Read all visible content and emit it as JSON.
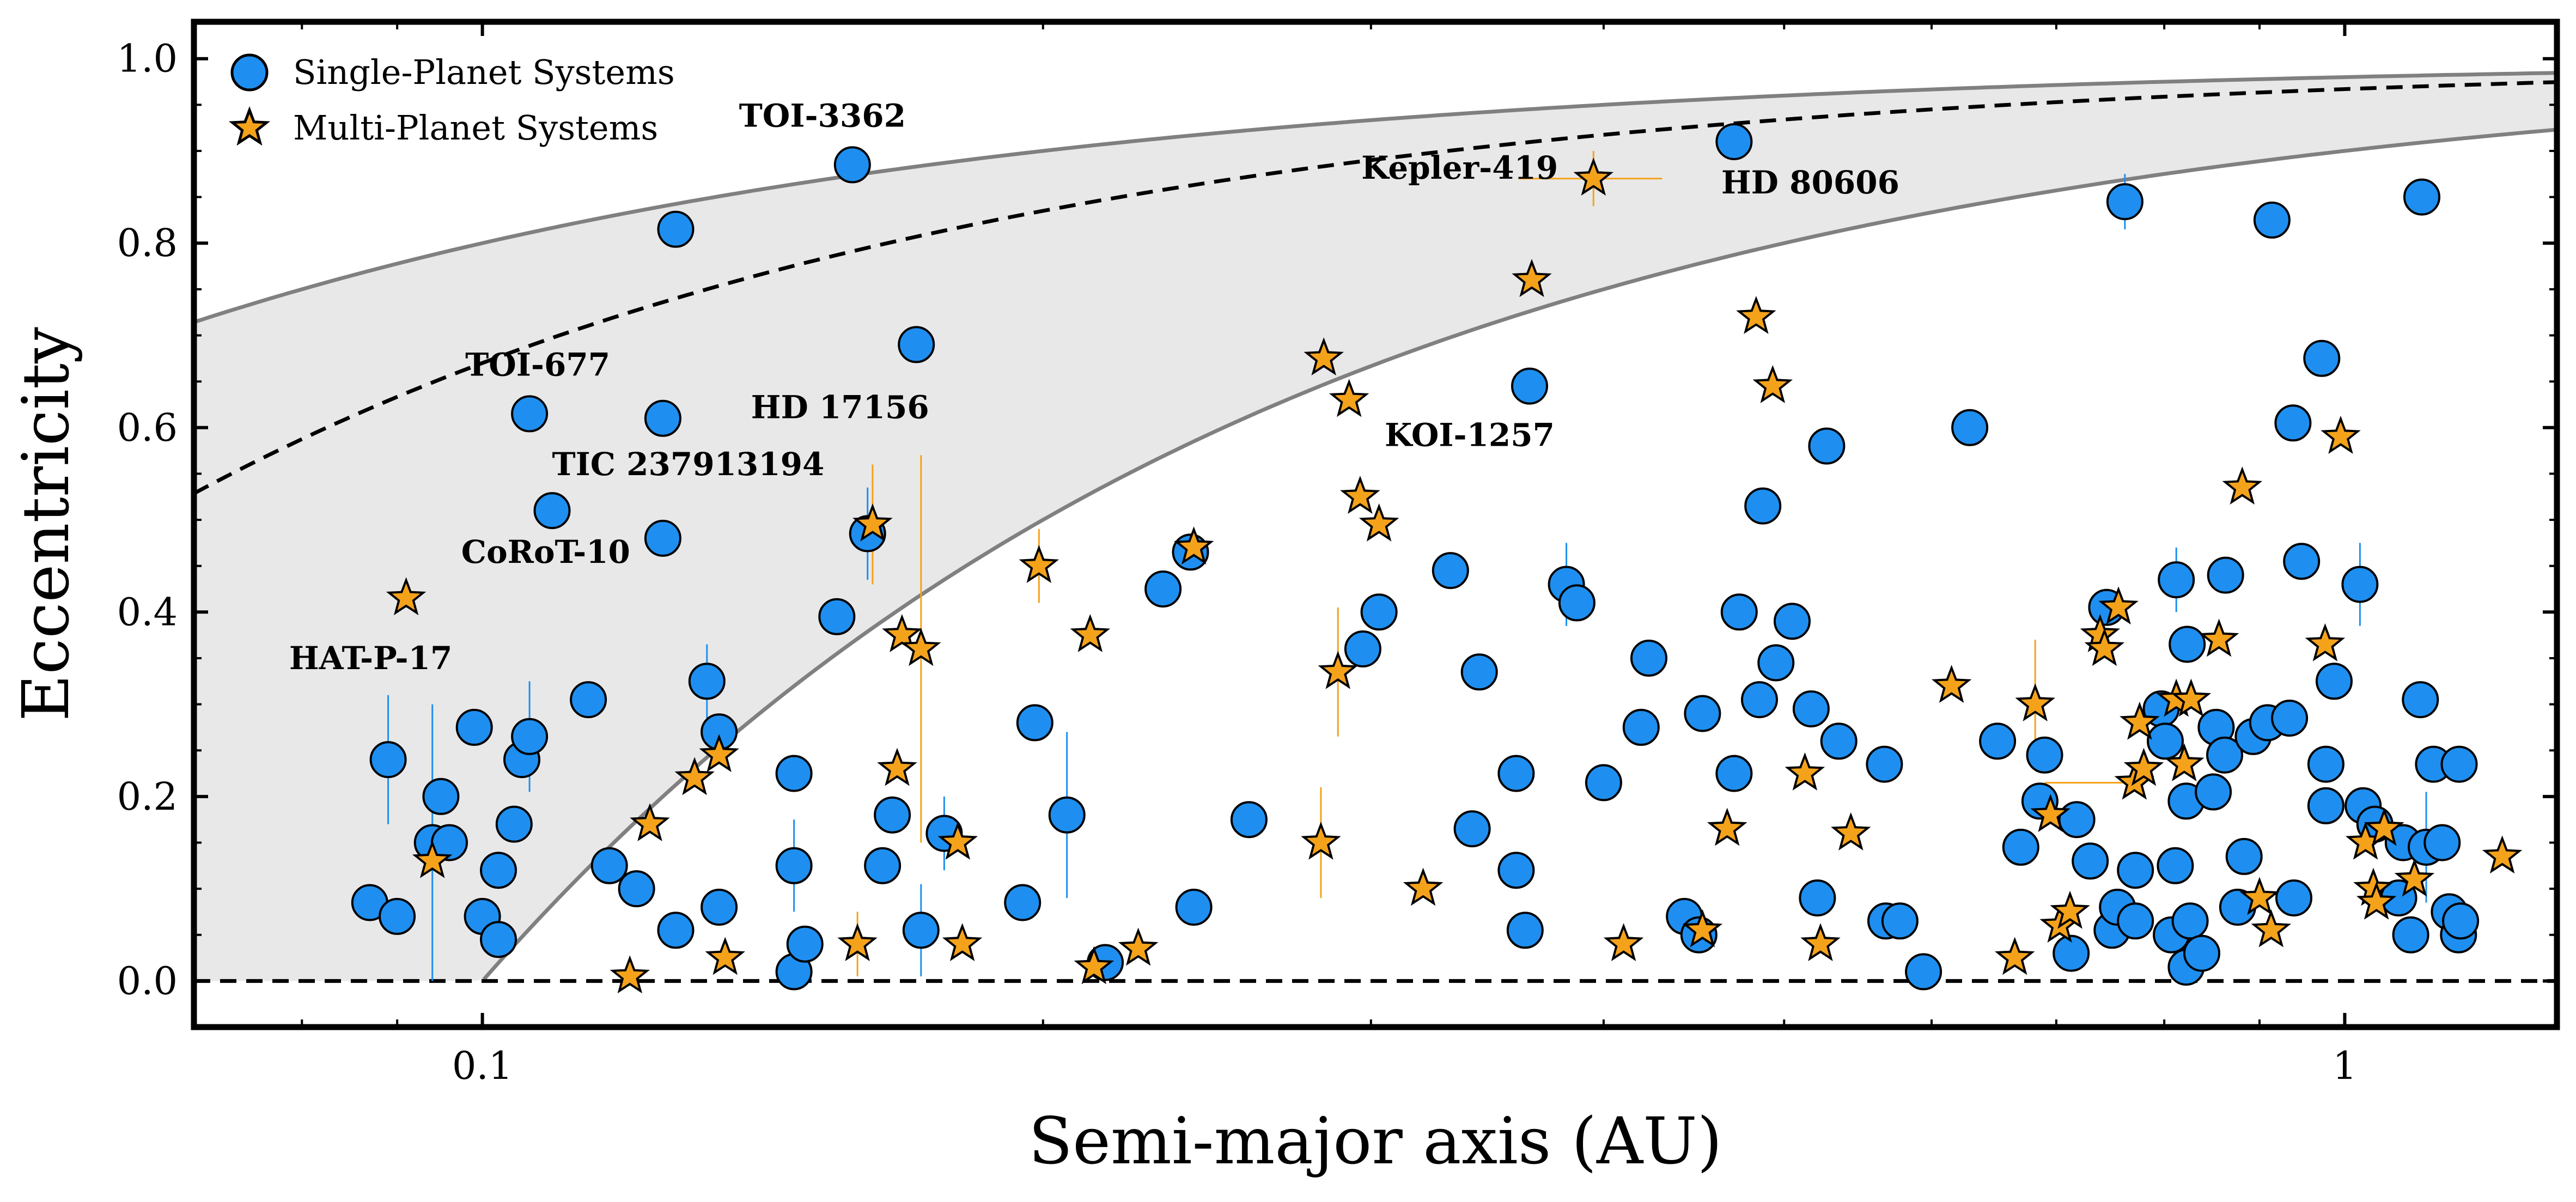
{
  "chart_data": {
    "type": "scatter",
    "xlabel": "Semi-major axis (AU)",
    "ylabel": "Eccentricity",
    "xscale": "log",
    "xlim": [
      0.07,
      1.3
    ],
    "ylim": [
      -0.05,
      1.04
    ],
    "x_ticks": [
      {
        "value": 0.1,
        "label": "0.1"
      },
      {
        "value": 1,
        "label": "1"
      }
    ],
    "y_ticks": [
      {
        "value": 0.0,
        "label": "0.0"
      },
      {
        "value": 0.2,
        "label": "0.2"
      },
      {
        "value": 0.4,
        "label": "0.4"
      },
      {
        "value": 0.6,
        "label": "0.6"
      },
      {
        "value": 0.8,
        "label": "0.8"
      },
      {
        "value": 1.0,
        "label": "1.0"
      }
    ],
    "legend": {
      "position": "top-left",
      "entries": [
        "Single-Planet Systems",
        "Multi-Planet Systems"
      ]
    },
    "colors": {
      "single": "#1e8ff0",
      "multi": "#f5a21b",
      "band": "#e8e8e8",
      "band_edge": "#808080"
    },
    "series": [
      {
        "name": "Single-Planet Systems",
        "marker": "circle",
        "points": [
          {
            "x": 0.089,
            "y": 0.24
          },
          {
            "x": 0.087,
            "y": 0.085
          },
          {
            "x": 0.09,
            "y": 0.07
          },
          {
            "x": 0.094,
            "y": 0.15
          },
          {
            "x": 0.095,
            "y": 0.2
          },
          {
            "x": 0.096,
            "y": 0.15
          },
          {
            "x": 0.099,
            "y": 0.275
          },
          {
            "x": 0.1,
            "y": 0.07
          },
          {
            "x": 0.102,
            "y": 0.045
          },
          {
            "x": 0.102,
            "y": 0.12
          },
          {
            "x": 0.104,
            "y": 0.17
          },
          {
            "x": 0.105,
            "y": 0.24
          },
          {
            "x": 0.106,
            "y": 0.265
          },
          {
            "x": 0.106,
            "y": 0.615
          },
          {
            "x": 0.109,
            "y": 0.51
          },
          {
            "x": 0.114,
            "y": 0.305
          },
          {
            "x": 0.117,
            "y": 0.125
          },
          {
            "x": 0.121,
            "y": 0.1
          },
          {
            "x": 0.125,
            "y": 0.48
          },
          {
            "x": 0.125,
            "y": 0.61
          },
          {
            "x": 0.127,
            "y": 0.815
          },
          {
            "x": 0.127,
            "y": 0.055
          },
          {
            "x": 0.132,
            "y": 0.325
          },
          {
            "x": 0.134,
            "y": 0.27
          },
          {
            "x": 0.134,
            "y": 0.08
          },
          {
            "x": 0.147,
            "y": 0.225
          },
          {
            "x": 0.147,
            "y": 0.125
          },
          {
            "x": 0.147,
            "y": 0.01
          },
          {
            "x": 0.149,
            "y": 0.04
          },
          {
            "x": 0.155,
            "y": 0.395
          },
          {
            "x": 0.158,
            "y": 0.885
          },
          {
            "x": 0.161,
            "y": 0.485
          },
          {
            "x": 0.164,
            "y": 0.125
          },
          {
            "x": 0.166,
            "y": 0.18
          },
          {
            "x": 0.171,
            "y": 0.69
          },
          {
            "x": 0.172,
            "y": 0.055
          },
          {
            "x": 0.177,
            "y": 0.16
          },
          {
            "x": 0.195,
            "y": 0.085
          },
          {
            "x": 0.198,
            "y": 0.28
          },
          {
            "x": 0.206,
            "y": 0.18
          },
          {
            "x": 0.216,
            "y": 0.02
          },
          {
            "x": 0.232,
            "y": 0.425
          },
          {
            "x": 0.24,
            "y": 0.465
          },
          {
            "x": 0.241,
            "y": 0.08
          },
          {
            "x": 0.258,
            "y": 0.175
          },
          {
            "x": 0.297,
            "y": 0.36
          },
          {
            "x": 0.303,
            "y": 0.4
          },
          {
            "x": 0.331,
            "y": 0.445
          },
          {
            "x": 0.343,
            "y": 0.335
          },
          {
            "x": 0.34,
            "y": 0.165
          },
          {
            "x": 0.359,
            "y": 0.225
          },
          {
            "x": 0.359,
            "y": 0.12
          },
          {
            "x": 0.363,
            "y": 0.055
          },
          {
            "x": 0.365,
            "y": 0.645
          },
          {
            "x": 0.382,
            "y": 0.43
          },
          {
            "x": 0.387,
            "y": 0.41
          },
          {
            "x": 0.4,
            "y": 0.215
          },
          {
            "x": 0.419,
            "y": 0.275
          },
          {
            "x": 0.423,
            "y": 0.35
          },
          {
            "x": 0.442,
            "y": 0.07
          },
          {
            "x": 0.45,
            "y": 0.05
          },
          {
            "x": 0.452,
            "y": 0.29
          },
          {
            "x": 0.47,
            "y": 0.91
          },
          {
            "x": 0.47,
            "y": 0.225
          },
          {
            "x": 0.473,
            "y": 0.4
          },
          {
            "x": 0.485,
            "y": 0.305
          },
          {
            "x": 0.487,
            "y": 0.515
          },
          {
            "x": 0.495,
            "y": 0.345
          },
          {
            "x": 0.505,
            "y": 0.39
          },
          {
            "x": 0.517,
            "y": 0.295
          },
          {
            "x": 0.521,
            "y": 0.09
          },
          {
            "x": 0.527,
            "y": 0.58
          },
          {
            "x": 0.535,
            "y": 0.26
          },
          {
            "x": 0.566,
            "y": 0.235
          },
          {
            "x": 0.567,
            "y": 0.065
          },
          {
            "x": 0.577,
            "y": 0.065
          },
          {
            "x": 0.594,
            "y": 0.01
          },
          {
            "x": 0.629,
            "y": 0.6
          },
          {
            "x": 0.651,
            "y": 0.26
          },
          {
            "x": 0.67,
            "y": 0.145
          },
          {
            "x": 0.686,
            "y": 0.195
          },
          {
            "x": 0.69,
            "y": 0.245
          },
          {
            "x": 0.713,
            "y": 0.03
          },
          {
            "x": 0.718,
            "y": 0.175
          },
          {
            "x": 0.73,
            "y": 0.13
          },
          {
            "x": 0.745,
            "y": 0.405
          },
          {
            "x": 0.75,
            "y": 0.055
          },
          {
            "x": 0.755,
            "y": 0.08
          },
          {
            "x": 0.762,
            "y": 0.845
          },
          {
            "x": 0.772,
            "y": 0.12
          },
          {
            "x": 0.772,
            "y": 0.065
          },
          {
            "x": 0.797,
            "y": 0.295
          },
          {
            "x": 0.801,
            "y": 0.26
          },
          {
            "x": 0.807,
            "y": 0.05
          },
          {
            "x": 0.811,
            "y": 0.125
          },
          {
            "x": 0.812,
            "y": 0.435
          },
          {
            "x": 0.822,
            "y": 0.195
          },
          {
            "x": 0.823,
            "y": 0.365
          },
          {
            "x": 0.822,
            "y": 0.015
          },
          {
            "x": 0.826,
            "y": 0.065
          },
          {
            "x": 0.838,
            "y": 0.03
          },
          {
            "x": 0.85,
            "y": 0.205
          },
          {
            "x": 0.853,
            "y": 0.275
          },
          {
            "x": 0.862,
            "y": 0.245
          },
          {
            "x": 0.863,
            "y": 0.44
          },
          {
            "x": 0.876,
            "y": 0.08
          },
          {
            "x": 0.883,
            "y": 0.135
          },
          {
            "x": 0.893,
            "y": 0.265
          },
          {
            "x": 0.909,
            "y": 0.28
          },
          {
            "x": 0.914,
            "y": 0.825
          },
          {
            "x": 0.934,
            "y": 0.285
          },
          {
            "x": 0.938,
            "y": 0.605
          },
          {
            "x": 0.939,
            "y": 0.09
          },
          {
            "x": 0.948,
            "y": 0.455
          },
          {
            "x": 0.972,
            "y": 0.675
          },
          {
            "x": 0.977,
            "y": 0.235
          },
          {
            "x": 0.977,
            "y": 0.19
          },
          {
            "x": 0.987,
            "y": 0.325
          },
          {
            "x": 1.019,
            "y": 0.43
          },
          {
            "x": 1.023,
            "y": 0.19
          },
          {
            "x": 1.038,
            "y": 0.17
          },
          {
            "x": 1.069,
            "y": 0.09
          },
          {
            "x": 1.075,
            "y": 0.15
          },
          {
            "x": 1.085,
            "y": 0.05
          },
          {
            "x": 1.098,
            "y": 0.305
          },
          {
            "x": 1.1,
            "y": 0.85
          },
          {
            "x": 1.106,
            "y": 0.145
          },
          {
            "x": 1.116,
            "y": 0.235
          },
          {
            "x": 1.128,
            "y": 0.15
          },
          {
            "x": 1.138,
            "y": 0.075
          },
          {
            "x": 1.151,
            "y": 0.05
          },
          {
            "x": 1.152,
            "y": 0.235
          },
          {
            "x": 1.154,
            "y": 0.065
          }
        ]
      },
      {
        "name": "Multi-Planet Systems",
        "marker": "star",
        "points": [
          {
            "x": 0.091,
            "y": 0.415
          },
          {
            "x": 0.094,
            "y": 0.13
          },
          {
            "x": 0.12,
            "y": 0.005
          },
          {
            "x": 0.123,
            "y": 0.17
          },
          {
            "x": 0.13,
            "y": 0.22
          },
          {
            "x": 0.134,
            "y": 0.245
          },
          {
            "x": 0.135,
            "y": 0.025
          },
          {
            "x": 0.159,
            "y": 0.04
          },
          {
            "x": 0.162,
            "y": 0.495
          },
          {
            "x": 0.167,
            "y": 0.23
          },
          {
            "x": 0.168,
            "y": 0.375
          },
          {
            "x": 0.172,
            "y": 0.36
          },
          {
            "x": 0.18,
            "y": 0.15
          },
          {
            "x": 0.181,
            "y": 0.04
          },
          {
            "x": 0.199,
            "y": 0.45
          },
          {
            "x": 0.212,
            "y": 0.375
          },
          {
            "x": 0.213,
            "y": 0.015
          },
          {
            "x": 0.225,
            "y": 0.035
          },
          {
            "x": 0.241,
            "y": 0.47
          },
          {
            "x": 0.282,
            "y": 0.15
          },
          {
            "x": 0.283,
            "y": 0.675
          },
          {
            "x": 0.288,
            "y": 0.335
          },
          {
            "x": 0.292,
            "y": 0.63
          },
          {
            "x": 0.296,
            "y": 0.525
          },
          {
            "x": 0.303,
            "y": 0.495
          },
          {
            "x": 0.32,
            "y": 0.1
          },
          {
            "x": 0.366,
            "y": 0.76
          },
          {
            "x": 0.395,
            "y": 0.87
          },
          {
            "x": 0.41,
            "y": 0.04
          },
          {
            "x": 0.452,
            "y": 0.055
          },
          {
            "x": 0.466,
            "y": 0.165
          },
          {
            "x": 0.483,
            "y": 0.72
          },
          {
            "x": 0.493,
            "y": 0.645
          },
          {
            "x": 0.513,
            "y": 0.225
          },
          {
            "x": 0.523,
            "y": 0.04
          },
          {
            "x": 0.543,
            "y": 0.16
          },
          {
            "x": 0.615,
            "y": 0.32
          },
          {
            "x": 0.665,
            "y": 0.025
          },
          {
            "x": 0.682,
            "y": 0.3
          },
          {
            "x": 0.695,
            "y": 0.18
          },
          {
            "x": 0.703,
            "y": 0.06
          },
          {
            "x": 0.712,
            "y": 0.075
          },
          {
            "x": 0.739,
            "y": 0.375
          },
          {
            "x": 0.743,
            "y": 0.36
          },
          {
            "x": 0.756,
            "y": 0.405
          },
          {
            "x": 0.771,
            "y": 0.215
          },
          {
            "x": 0.776,
            "y": 0.28
          },
          {
            "x": 0.78,
            "y": 0.23
          },
          {
            "x": 0.812,
            "y": 0.305
          },
          {
            "x": 0.82,
            "y": 0.235
          },
          {
            "x": 0.827,
            "y": 0.305
          },
          {
            "x": 0.856,
            "y": 0.37
          },
          {
            "x": 0.881,
            "y": 0.535
          },
          {
            "x": 0.9,
            "y": 0.09
          },
          {
            "x": 0.913,
            "y": 0.055
          },
          {
            "x": 0.976,
            "y": 0.365
          },
          {
            "x": 0.995,
            "y": 0.59
          },
          {
            "x": 1.026,
            "y": 0.15
          },
          {
            "x": 1.036,
            "y": 0.1
          },
          {
            "x": 1.04,
            "y": 0.085
          },
          {
            "x": 1.05,
            "y": 0.165
          },
          {
            "x": 1.09,
            "y": 0.11
          },
          {
            "x": 1.215,
            "y": 0.135
          }
        ]
      }
    ],
    "annotations": [
      {
        "text": "TOI-3362",
        "x": 0.158,
        "y": 0.885
      },
      {
        "text": "HD 80606",
        "x": 0.47,
        "y": 0.91
      },
      {
        "text": "Kepler-419",
        "x": 0.395,
        "y": 0.87
      },
      {
        "text": "HD 17156",
        "x": 0.171,
        "y": 0.69
      },
      {
        "text": "TOI-677",
        "x": 0.106,
        "y": 0.615
      },
      {
        "text": "KOI-1257",
        "x": 0.365,
        "y": 0.645
      },
      {
        "text": "TIC 237913194",
        "x": 0.109,
        "y": 0.51
      },
      {
        "text": "CoRoT-10",
        "x": 0.125,
        "y": 0.48
      },
      {
        "text": "HAT-P-17",
        "x": 0.091,
        "y": 0.415
      }
    ]
  }
}
